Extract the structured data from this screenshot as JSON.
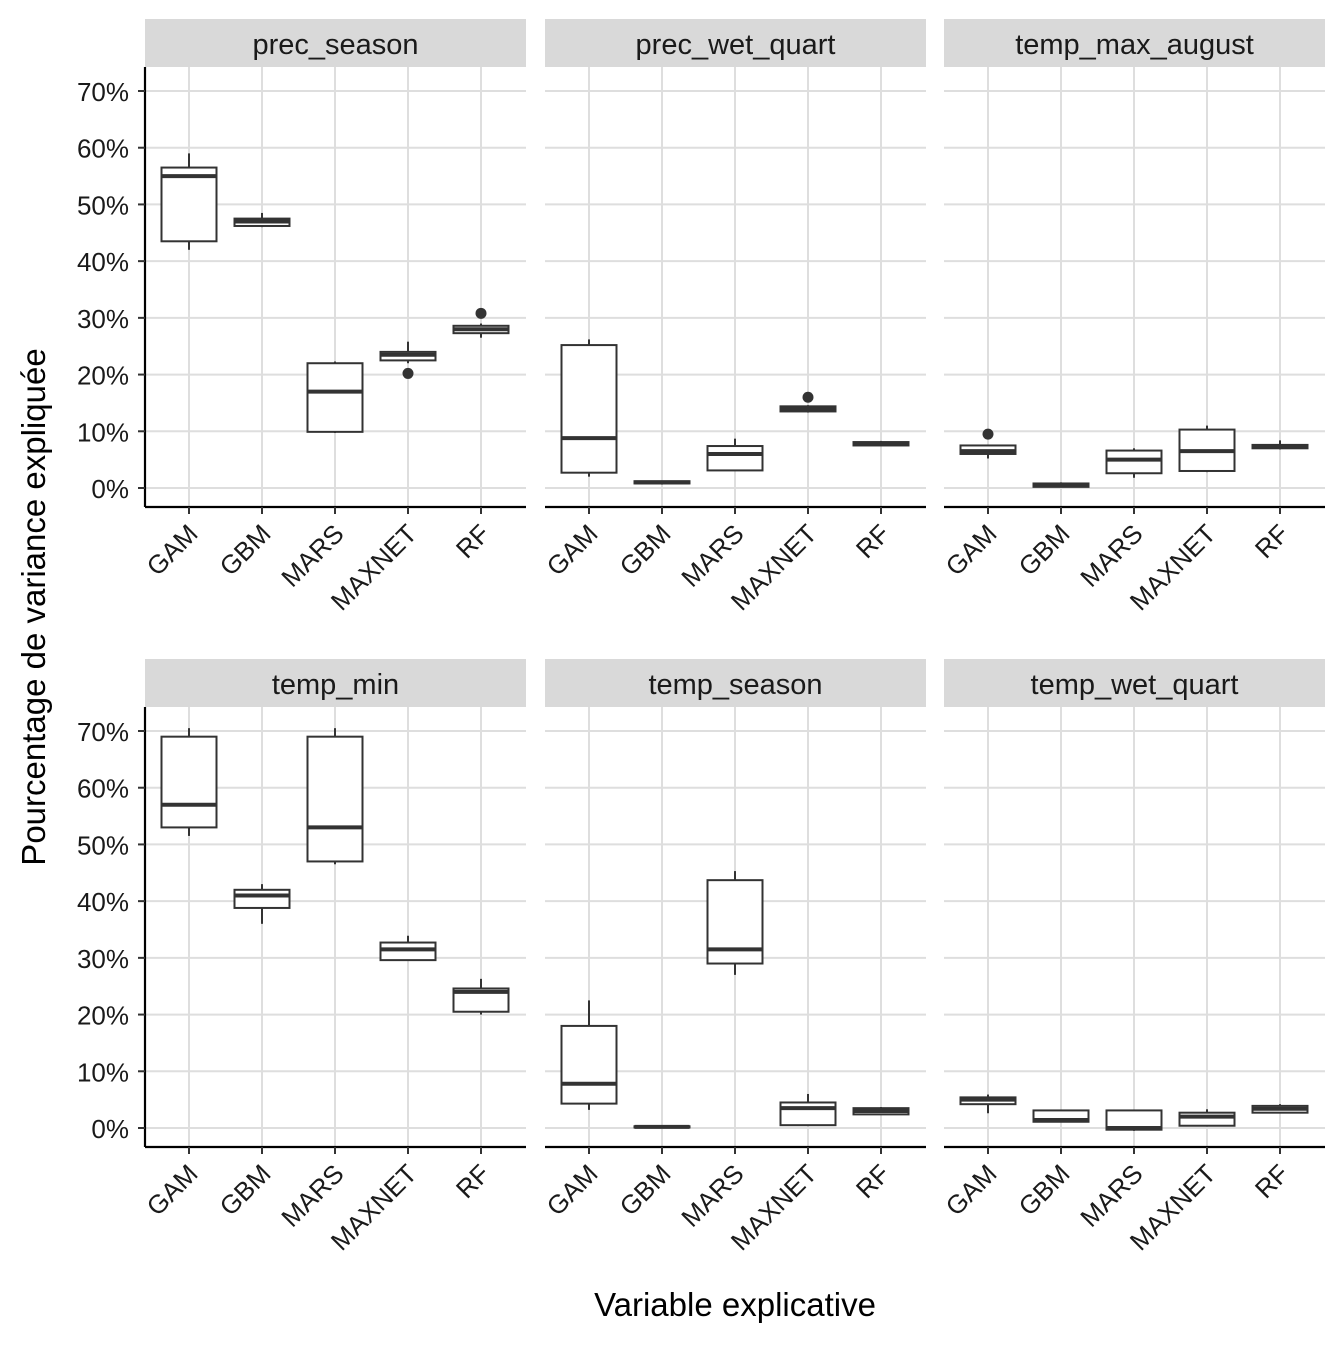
{
  "chart_data": {
    "type": "boxplot",
    "facet_layout": "2x3",
    "xlabel": "Variable explicative",
    "ylabel": "Pourcentage de variance expliquée",
    "ylim": [
      -3.5,
      74
    ],
    "yticks": [
      0,
      10,
      20,
      30,
      40,
      50,
      60,
      70
    ],
    "ytick_labels": [
      "0%",
      "10%",
      "20%",
      "30%",
      "40%",
      "50%",
      "60%",
      "70%"
    ],
    "categories": [
      "GAM",
      "GBM",
      "MARS",
      "MAXNET",
      "RF"
    ],
    "grid": true,
    "legend": "none",
    "colors": {
      "box_stroke": "#333333",
      "strip_bg": "#d9d9d9",
      "grid": "#dedede",
      "axis": "#000000"
    },
    "panels": [
      {
        "title": "prec_season",
        "boxes": [
          {
            "category": "GAM",
            "whisker_low": 42,
            "q1": 43.5,
            "median": 55,
            "q3": 56.5,
            "whisker_high": 59,
            "outliers": []
          },
          {
            "category": "GBM",
            "whisker_low": 46,
            "q1": 46.2,
            "median": 47,
            "q3": 47.5,
            "whisker_high": 48.5,
            "outliers": []
          },
          {
            "category": "MARS",
            "whisker_low": 9.7,
            "q1": 9.9,
            "median": 17,
            "q3": 22,
            "whisker_high": 22.3,
            "outliers": []
          },
          {
            "category": "MAXNET",
            "whisker_low": 22,
            "q1": 22.5,
            "median": 23.5,
            "q3": 24,
            "whisker_high": 25.8,
            "outliers": [
              20.2
            ]
          },
          {
            "category": "RF",
            "whisker_low": 26.5,
            "q1": 27.3,
            "median": 28,
            "q3": 28.6,
            "whisker_high": 29,
            "outliers": [
              30.8
            ]
          }
        ]
      },
      {
        "title": "prec_wet_quart",
        "boxes": [
          {
            "category": "GAM",
            "whisker_low": 2,
            "q1": 2.7,
            "median": 8.8,
            "q3": 25.2,
            "whisker_high": 26.2,
            "outliers": []
          },
          {
            "category": "GBM",
            "whisker_low": 0.6,
            "q1": 0.8,
            "median": 1,
            "q3": 1.2,
            "whisker_high": 1.3,
            "outliers": []
          },
          {
            "category": "MARS",
            "whisker_low": 3,
            "q1": 3.1,
            "median": 6,
            "q3": 7.4,
            "whisker_high": 8.7,
            "outliers": []
          },
          {
            "category": "MAXNET",
            "whisker_low": 13.3,
            "q1": 13.5,
            "median": 14,
            "q3": 14.4,
            "whisker_high": 14.6,
            "outliers": [
              16
            ]
          },
          {
            "category": "RF",
            "whisker_low": 7.4,
            "q1": 7.5,
            "median": 7.8,
            "q3": 8.1,
            "whisker_high": 8.3,
            "outliers": []
          }
        ]
      },
      {
        "title": "temp_max_august",
        "boxes": [
          {
            "category": "GAM",
            "whisker_low": 5.2,
            "q1": 6,
            "median": 6.5,
            "q3": 7.5,
            "whisker_high": 7.6,
            "outliers": [
              9.5
            ]
          },
          {
            "category": "GBM",
            "whisker_low": 0.1,
            "q1": 0.2,
            "median": 0.5,
            "q3": 0.8,
            "whisker_high": 1,
            "outliers": []
          },
          {
            "category": "MARS",
            "whisker_low": 1.8,
            "q1": 2.6,
            "median": 5,
            "q3": 6.6,
            "whisker_high": 7,
            "outliers": []
          },
          {
            "category": "MAXNET",
            "whisker_low": 2.8,
            "q1": 3,
            "median": 6.5,
            "q3": 10.3,
            "whisker_high": 11,
            "outliers": []
          },
          {
            "category": "RF",
            "whisker_low": 6.8,
            "q1": 7,
            "median": 7.3,
            "q3": 7.6,
            "whisker_high": 8.4,
            "outliers": []
          }
        ]
      },
      {
        "title": "temp_min",
        "boxes": [
          {
            "category": "GAM",
            "whisker_low": 51.5,
            "q1": 53,
            "median": 57,
            "q3": 69,
            "whisker_high": 70.5,
            "outliers": []
          },
          {
            "category": "GBM",
            "whisker_low": 36,
            "q1": 38.8,
            "median": 41,
            "q3": 42,
            "whisker_high": 43,
            "outliers": []
          },
          {
            "category": "MARS",
            "whisker_low": 46.5,
            "q1": 47,
            "median": 53,
            "q3": 69,
            "whisker_high": 70.5,
            "outliers": []
          },
          {
            "category": "MAXNET",
            "whisker_low": 29.5,
            "q1": 29.6,
            "median": 31.5,
            "q3": 32.7,
            "whisker_high": 33.9,
            "outliers": []
          },
          {
            "category": "RF",
            "whisker_low": 20,
            "q1": 20.5,
            "median": 24,
            "q3": 24.6,
            "whisker_high": 26.3,
            "outliers": []
          }
        ]
      },
      {
        "title": "temp_season",
        "boxes": [
          {
            "category": "GAM",
            "whisker_low": 3.2,
            "q1": 4.3,
            "median": 7.8,
            "q3": 18,
            "whisker_high": 22.5,
            "outliers": []
          },
          {
            "category": "GBM",
            "whisker_low": 0,
            "q1": 0.1,
            "median": 0.2,
            "q3": 0.3,
            "whisker_high": 0.4,
            "outliers": []
          },
          {
            "category": "MARS",
            "whisker_low": 27,
            "q1": 29,
            "median": 31.5,
            "q3": 43.7,
            "whisker_high": 45.3,
            "outliers": []
          },
          {
            "category": "MAXNET",
            "whisker_low": 0.5,
            "q1": 0.5,
            "median": 3.5,
            "q3": 4.5,
            "whisker_high": 6,
            "outliers": []
          },
          {
            "category": "RF",
            "whisker_low": 2.3,
            "q1": 2.4,
            "median": 3,
            "q3": 3.5,
            "whisker_high": 3.7,
            "outliers": []
          }
        ]
      },
      {
        "title": "temp_wet_quart",
        "boxes": [
          {
            "category": "GAM",
            "whisker_low": 2.6,
            "q1": 4.2,
            "median": 5,
            "q3": 5.4,
            "whisker_high": 5.9,
            "outliers": []
          },
          {
            "category": "GBM",
            "whisker_low": 1,
            "q1": 1.1,
            "median": 1.4,
            "q3": 3.1,
            "whisker_high": 3.2,
            "outliers": []
          },
          {
            "category": "MARS",
            "whisker_low": -0.5,
            "q1": -0.3,
            "median": 0,
            "q3": 3.1,
            "whisker_high": 3.2,
            "outliers": []
          },
          {
            "category": "MAXNET",
            "whisker_low": 0.3,
            "q1": 0.4,
            "median": 2,
            "q3": 2.7,
            "whisker_high": 3.3,
            "outliers": []
          },
          {
            "category": "RF",
            "whisker_low": 2.6,
            "q1": 2.7,
            "median": 3.4,
            "q3": 3.9,
            "whisker_high": 4.2,
            "outliers": []
          }
        ]
      }
    ]
  }
}
